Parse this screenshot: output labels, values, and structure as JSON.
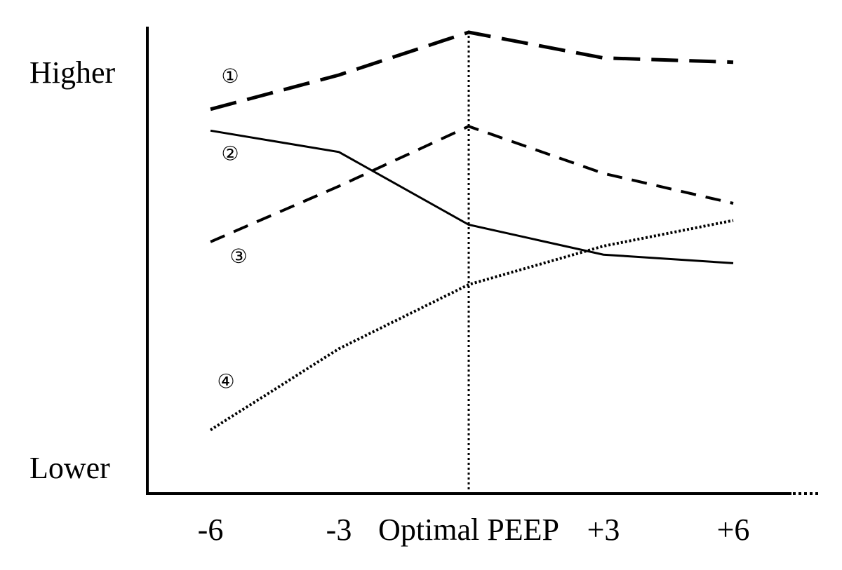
{
  "chart_data": {
    "type": "line",
    "title": "",
    "xlabel": "",
    "ylabel": "",
    "categories": [
      "-6",
      "-3",
      "Optimal PEEP",
      "+3",
      "+6"
    ],
    "y_labels": {
      "high": "Higher",
      "low": "Lower"
    },
    "ylim": [
      0,
      100
    ],
    "reference_line_category": "Optimal PEEP",
    "grid": false,
    "series": [
      {
        "marker": "①",
        "style": "long-dash",
        "color": "#000000",
        "values": [
          82,
          90,
          100,
          94,
          93
        ]
      },
      {
        "marker": "②",
        "style": "solid",
        "color": "#000000",
        "values": [
          77,
          72,
          55,
          48,
          46
        ]
      },
      {
        "marker": "③",
        "style": "short-dash",
        "color": "#000000",
        "values": [
          51,
          64,
          78,
          67,
          60
        ]
      },
      {
        "marker": "④",
        "style": "dotted",
        "color": "#000000",
        "values": [
          7,
          26,
          41,
          50,
          56
        ]
      }
    ]
  }
}
